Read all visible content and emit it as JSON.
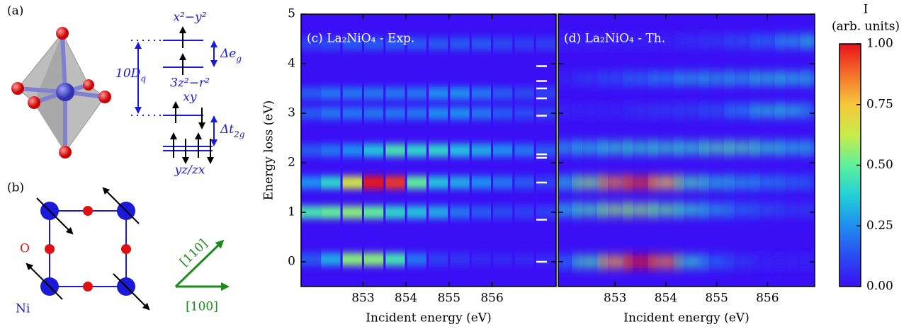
{
  "diagram": {
    "panel_a": "(a)",
    "panel_b": "(b)",
    "orbitals": [
      "x²−y²",
      "3z²−r²",
      "xy",
      "yz/zx"
    ],
    "splitting_10dq": [
      "10D",
      "q"
    ],
    "splitting_eg": [
      "Δe",
      "g"
    ],
    "splitting_t2g": [
      "Δt",
      "2g"
    ],
    "oxygen": "O",
    "nickel": "Ni",
    "directions": [
      "[110]",
      "[100]"
    ]
  },
  "chart_data": [
    {
      "type": "heatmap",
      "title": "(c) La₂NiO₄ - Exp.",
      "xlabel": "Incident energy (eV)",
      "ylabel": "Energy loss (eV)",
      "xlim": [
        851.56,
        857.49
      ],
      "ylim": [
        -0.5,
        5
      ],
      "xticks": [
        853,
        854,
        855,
        856
      ],
      "yticks": [
        0,
        1,
        2,
        3,
        4,
        5
      ],
      "smooth": false,
      "x": [
        851.8,
        852.25,
        852.75,
        853.25,
        853.75,
        854.25,
        854.75,
        855.25,
        855.75,
        856.25,
        856.75,
        857.25
      ],
      "y": [
        0.05,
        1.0,
        1.6,
        2.25,
        3.0,
        3.4,
        4.4
      ],
      "values": [
        [
          0.15,
          0.3,
          0.55,
          0.55,
          0.45,
          0.2,
          0.1,
          0.08,
          0.05,
          0.05,
          0.05,
          0.05
        ],
        [
          0.45,
          0.5,
          0.55,
          0.5,
          0.4,
          0.35,
          0.3,
          0.2,
          0.15,
          0.12,
          0.1,
          0.1
        ],
        [
          0.25,
          0.4,
          0.65,
          1.0,
          0.95,
          0.5,
          0.35,
          0.3,
          0.25,
          0.2,
          0.15,
          0.1
        ],
        [
          0.15,
          0.2,
          0.25,
          0.35,
          0.45,
          0.4,
          0.4,
          0.35,
          0.3,
          0.25,
          0.2,
          0.15
        ],
        [
          0.15,
          0.2,
          0.2,
          0.2,
          0.2,
          0.2,
          0.25,
          0.25,
          0.2,
          0.15,
          0.12,
          0.1
        ],
        [
          0.15,
          0.2,
          0.2,
          0.2,
          0.2,
          0.2,
          0.25,
          0.25,
          0.2,
          0.15,
          0.12,
          0.1
        ],
        [
          0.1,
          0.12,
          0.15,
          0.15,
          0.15,
          0.15,
          0.15,
          0.15,
          0.15,
          0.12,
          0.1,
          0.1
        ]
      ],
      "markers": [
        0,
        0.85,
        1.6,
        2.1,
        2.17,
        2.95,
        3.3,
        3.5,
        3.65,
        3.95
      ],
      "marker_color": "#ffffff"
    },
    {
      "type": "heatmap",
      "title": "(d) La₂NiO₄ - Th.",
      "xlabel": "Incident energy (eV)",
      "xlim": [
        851.88,
        856.93
      ],
      "ylim": [
        -0.5,
        5
      ],
      "xticks": [
        853,
        854,
        855,
        856
      ],
      "yticks": [
        0,
        1,
        2,
        3,
        4,
        5
      ],
      "smooth": true,
      "x": [
        852,
        852.5,
        853,
        853.5,
        854,
        854.5,
        855,
        855.5,
        856,
        856.5,
        857
      ],
      "y": [
        0,
        1.05,
        1.6,
        2.3,
        3.05,
        3.7,
        4.45
      ],
      "values": [
        [
          0.2,
          0.45,
          0.8,
          1.0,
          0.85,
          0.4,
          0.2,
          0.1,
          0.05,
          0.05,
          0.05
        ],
        [
          0.35,
          0.45,
          0.55,
          0.55,
          0.5,
          0.4,
          0.3,
          0.2,
          0.15,
          0.1,
          0.1
        ],
        [
          0.35,
          0.55,
          0.85,
          0.95,
          0.75,
          0.45,
          0.35,
          0.3,
          0.25,
          0.2,
          0.15
        ],
        [
          0.3,
          0.35,
          0.4,
          0.4,
          0.4,
          0.4,
          0.45,
          0.45,
          0.4,
          0.35,
          0.3
        ],
        [
          0.05,
          0.05,
          0.05,
          0.08,
          0.1,
          0.12,
          0.15,
          0.25,
          0.35,
          0.35,
          0.2
        ],
        [
          0.05,
          0.1,
          0.15,
          0.2,
          0.25,
          0.3,
          0.3,
          0.3,
          0.35,
          0.35,
          0.3
        ],
        [
          0.05,
          0.05,
          0.05,
          0.05,
          0.05,
          0.08,
          0.1,
          0.15,
          0.2,
          0.3,
          0.35
        ]
      ]
    },
    {
      "type": "colorbar",
      "title": [
        "I",
        "(arb. units)"
      ],
      "ylim": [
        0,
        1
      ],
      "yticks": [
        {
          "value": 0,
          "label": "0.00"
        },
        0.25,
        {
          "value": 0.5,
          "label": "0.50"
        },
        0.75,
        {
          "value": 1,
          "label": "1.00"
        }
      ],
      "colormap": [
        "#3b0ff5",
        "#2a4cf2",
        "#1e8ef0",
        "#22d0d8",
        "#5ef09a",
        "#c8ec4a",
        "#f6c83a",
        "#f4702a",
        "#e8121a"
      ]
    }
  ]
}
